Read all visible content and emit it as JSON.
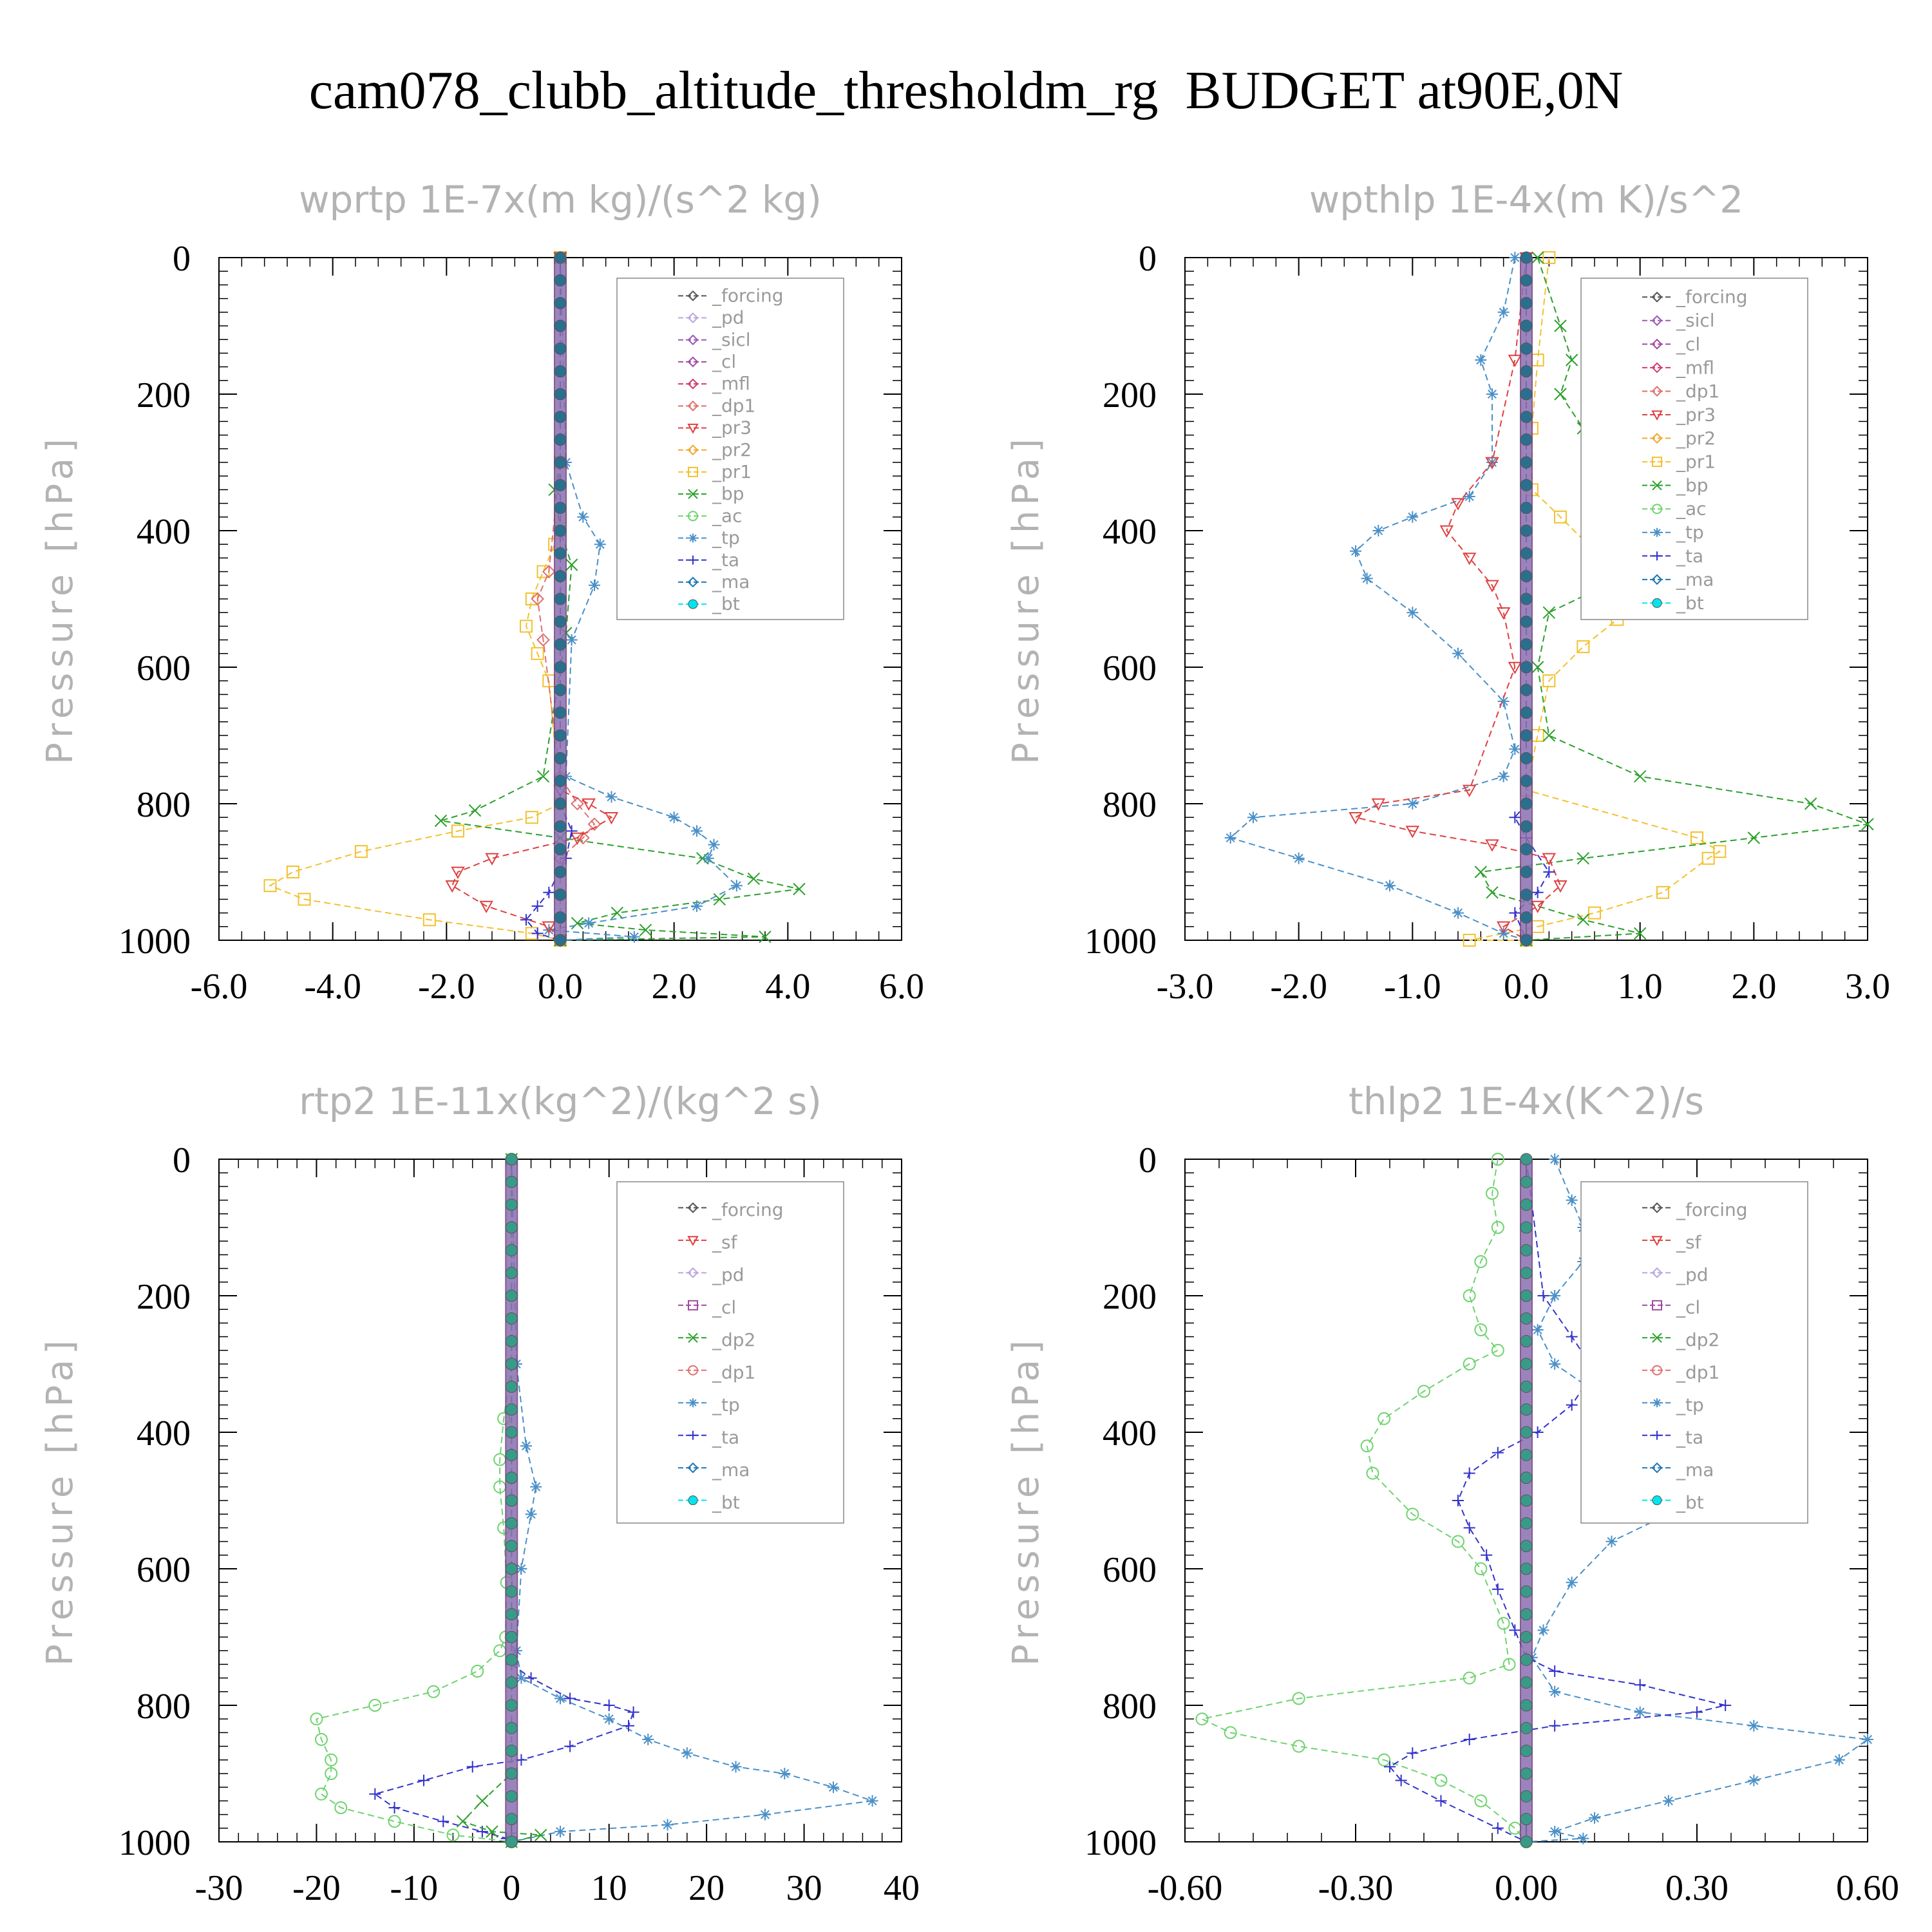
{
  "title": "cam078_clubb_altitude_thresholdm_rg  BUDGET at90E,0N",
  "chart_data": [
    {
      "type": "line",
      "title": "wprtp  1E-7x(m kg)/(s^2 kg)",
      "ylabel": "Pressure [hPa]",
      "xlim": [
        -6,
        6
      ],
      "ylim": [
        0,
        1000
      ],
      "xticks": [
        "-6.0",
        "-4.0",
        "-2.0",
        "0.0",
        "2.0",
        "4.0",
        "6.0"
      ],
      "xtick_values": [
        -6,
        -4,
        -2,
        0,
        2,
        4,
        6
      ],
      "yticks": [
        "0",
        "200",
        "400",
        "600",
        "800",
        "1000"
      ],
      "ytick_values": [
        0,
        200,
        400,
        600,
        800,
        1000
      ],
      "legend": [
        "_forcing",
        "_pd",
        "_sicl",
        "_cl",
        "_mfl",
        "_dp1",
        "_pr3",
        "_pr2",
        "_pr1",
        "_bp",
        "_ac",
        "_tp",
        "_ta",
        "_ma",
        "_bt"
      ],
      "series": [
        {
          "name": "_pr1",
          "color": "#f2c12e",
          "marker": "square",
          "x": [
            0,
            0,
            0,
            -0.1,
            -0.3,
            -0.5,
            -0.6,
            -0.4,
            -0.2,
            0,
            -0.5,
            -1.8,
            -3.5,
            -4.7,
            -5.1,
            -4.5,
            -2.3,
            -0.5,
            0
          ],
          "y": [
            0,
            300,
            380,
            420,
            460,
            500,
            540,
            580,
            620,
            800,
            820,
            840,
            870,
            900,
            920,
            940,
            970,
            990,
            1000
          ]
        },
        {
          "name": "_bp",
          "color": "#2ca02c",
          "marker": "cross",
          "x": [
            0,
            0,
            -0.1,
            0,
            0.2,
            0.1,
            -0.3,
            -1.5,
            -2.1,
            0,
            2.5,
            3.4,
            4.2,
            2.8,
            1.0,
            0.3,
            1.5,
            3.6,
            0
          ],
          "y": [
            0,
            300,
            340,
            400,
            450,
            550,
            760,
            810,
            825,
            850,
            880,
            910,
            925,
            940,
            960,
            975,
            985,
            995,
            1000
          ]
        },
        {
          "name": "_tp",
          "color": "#4a90c8",
          "marker": "star",
          "x": [
            0,
            0.1,
            0.4,
            0.7,
            0.6,
            0.2,
            0.1,
            0.9,
            2.0,
            2.4,
            2.7,
            2.6,
            3.1,
            2.4,
            0.5,
            -0.2,
            1.3,
            0
          ],
          "y": [
            0,
            300,
            380,
            420,
            480,
            560,
            760,
            790,
            820,
            840,
            860,
            880,
            920,
            950,
            975,
            985,
            995,
            1000
          ]
        },
        {
          "name": "_dp1",
          "color": "#e07070",
          "marker": "diamond",
          "x": [
            0,
            0,
            -0.2,
            -0.4,
            -0.3,
            0,
            0.3,
            0.6,
            0.4,
            0,
            0
          ],
          "y": [
            0,
            300,
            460,
            500,
            560,
            760,
            800,
            830,
            850,
            880,
            1000
          ]
        },
        {
          "name": "_pr3",
          "color": "#e04040",
          "marker": "triangle-down",
          "x": [
            0,
            0,
            0.5,
            0.9,
            0.3,
            -1.2,
            -1.8,
            -1.9,
            -1.3,
            -0.2,
            0
          ],
          "y": [
            0,
            780,
            800,
            820,
            850,
            880,
            900,
            920,
            950,
            980,
            1000
          ]
        },
        {
          "name": "_ta",
          "color": "#3333cc",
          "marker": "plus",
          "x": [
            0,
            0,
            0.2,
            0.1,
            -0.2,
            -0.4,
            -0.6,
            -0.4,
            0
          ],
          "y": [
            0,
            800,
            840,
            880,
            930,
            950,
            970,
            990,
            1000
          ]
        },
        {
          "name": "_bt",
          "color": "#2b6f8f",
          "marker": "circle",
          "x": [
            0,
            0
          ],
          "y": [
            0,
            1000
          ]
        }
      ]
    },
    {
      "type": "line",
      "title": "wpthlp  1E-4x(m K)/s^2",
      "ylabel": "Pressure [hPa]",
      "xlim": [
        -3,
        3
      ],
      "ylim": [
        0,
        1000
      ],
      "xticks": [
        "-3.0",
        "-2.0",
        "-1.0",
        "0.0",
        "1.0",
        "2.0",
        "3.0"
      ],
      "xtick_values": [
        -3,
        -2,
        -1,
        0,
        1,
        2,
        3
      ],
      "yticks": [
        "0",
        "200",
        "400",
        "600",
        "800",
        "1000"
      ],
      "ytick_values": [
        0,
        200,
        400,
        600,
        800,
        1000
      ],
      "legend": [
        "_forcing",
        "_sicl",
        "_cl",
        "_mfl",
        "_dp1",
        "_pr3",
        "_pr2",
        "_pr1",
        "_bp",
        "_ac",
        "_tp",
        "_ta",
        "_ma",
        "_bt"
      ],
      "series": [
        {
          "name": "_pr1",
          "color": "#f2c12e",
          "marker": "square",
          "x": [
            0.2,
            0.1,
            0.05,
            0.05,
            0.3,
            0.6,
            0.9,
            1.0,
            0.8,
            0.5,
            0.2,
            0.1,
            0,
            1.5,
            1.7,
            1.6,
            1.2,
            0.6,
            0.1,
            -0.5,
            0
          ],
          "y": [
            0,
            150,
            250,
            340,
            380,
            430,
            470,
            500,
            530,
            570,
            620,
            700,
            780,
            850,
            870,
            880,
            930,
            960,
            980,
            1000,
            1000
          ]
        },
        {
          "name": "_bp",
          "color": "#2ca02c",
          "marker": "cross",
          "x": [
            0.1,
            0.3,
            0.4,
            0.3,
            0.5,
            0.9,
            1.3,
            1.2,
            0.7,
            0.2,
            0.1,
            0.2,
            1.0,
            2.5,
            3.0,
            2.0,
            0.5,
            -0.4,
            -0.3,
            0.5,
            1.0,
            0
          ],
          "y": [
            0,
            100,
            150,
            200,
            250,
            320,
            400,
            450,
            480,
            520,
            600,
            700,
            760,
            800,
            830,
            850,
            880,
            900,
            930,
            970,
            990,
            1000
          ]
        },
        {
          "name": "_tp",
          "color": "#4a90c8",
          "marker": "star",
          "x": [
            -0.1,
            -0.2,
            -0.4,
            -0.3,
            -0.3,
            -0.5,
            -1.0,
            -1.3,
            -1.5,
            -1.4,
            -1.0,
            -0.6,
            -0.2,
            -0.1,
            -0.2,
            -1.0,
            -2.4,
            -2.6,
            -2.0,
            -1.2,
            -0.6,
            -0.2,
            0
          ],
          "y": [
            0,
            80,
            150,
            200,
            300,
            350,
            380,
            400,
            430,
            470,
            520,
            580,
            650,
            720,
            760,
            800,
            820,
            850,
            880,
            920,
            960,
            990,
            1000
          ]
        },
        {
          "name": "_pr3",
          "color": "#e04040",
          "marker": "triangle-down",
          "x": [
            0,
            -0.1,
            -0.3,
            -0.6,
            -0.7,
            -0.5,
            -0.3,
            -0.2,
            -0.1,
            -0.5,
            -1.3,
            -1.5,
            -1.0,
            -0.3,
            0.2,
            0.3,
            0.1,
            -0.2,
            0
          ],
          "y": [
            0,
            150,
            300,
            360,
            400,
            440,
            480,
            520,
            600,
            780,
            800,
            820,
            840,
            860,
            880,
            920,
            950,
            980,
            1000
          ]
        },
        {
          "name": "_ta",
          "color": "#3333cc",
          "marker": "plus",
          "x": [
            0,
            0,
            -0.1,
            0,
            0.2,
            0.1,
            -0.1,
            0
          ],
          "y": [
            0,
            800,
            820,
            850,
            900,
            930,
            960,
            1000
          ]
        },
        {
          "name": "_bt",
          "color": "#2b6f8f",
          "marker": "circle",
          "x": [
            0,
            0
          ],
          "y": [
            0,
            1000
          ]
        }
      ]
    },
    {
      "type": "line",
      "title": "rtp2  1E-11x(kg^2)/(kg^2 s)",
      "ylabel": "Pressure [hPa]",
      "xlim": [
        -30,
        40
      ],
      "ylim": [
        0,
        1000
      ],
      "xticks": [
        "-30",
        "-20",
        "-10",
        "0",
        "10",
        "20",
        "30",
        "40"
      ],
      "xtick_values": [
        -30,
        -20,
        -10,
        0,
        10,
        20,
        30,
        40
      ],
      "yticks": [
        "0",
        "200",
        "400",
        "600",
        "800",
        "1000"
      ],
      "ytick_values": [
        0,
        200,
        400,
        600,
        800,
        1000
      ],
      "legend": [
        "_forcing",
        "_sf",
        "_pd",
        "_cl",
        "_dp2",
        "_dp1",
        "_tp",
        "_ta",
        "_ma",
        "_bt"
      ],
      "series": [
        {
          "name": "_dp1",
          "color": "#6fd36f",
          "marker": "circle-open",
          "x": [
            0,
            0,
            -0.8,
            -1.2,
            -1.2,
            -0.8,
            -0.5,
            -0.6,
            -1.2,
            -3.5,
            -8,
            -14,
            -20,
            -19.5,
            -18.5,
            -18.5,
            -19.5,
            -17.5,
            -12,
            -6,
            0
          ],
          "y": [
            0,
            300,
            380,
            440,
            480,
            540,
            620,
            700,
            720,
            750,
            780,
            800,
            820,
            850,
            880,
            900,
            930,
            950,
            970,
            990,
            1000
          ]
        },
        {
          "name": "_tp",
          "color": "#4a90c8",
          "marker": "star",
          "x": [
            0,
            0.5,
            1.5,
            2.5,
            2.0,
            1.0,
            0.5,
            1.0,
            5,
            10,
            14,
            18,
            23,
            28,
            33,
            37,
            26,
            16,
            5,
            0
          ],
          "y": [
            0,
            300,
            420,
            480,
            520,
            600,
            720,
            760,
            790,
            820,
            850,
            870,
            890,
            900,
            920,
            940,
            960,
            975,
            985,
            1000
          ]
        },
        {
          "name": "_ta",
          "color": "#3333cc",
          "marker": "plus",
          "x": [
            0,
            0,
            2,
            6,
            10,
            12.5,
            12,
            6,
            1,
            -4,
            -9,
            -14,
            -12,
            -7,
            -3,
            -0.5,
            0
          ],
          "y": [
            0,
            740,
            760,
            790,
            800,
            810,
            830,
            860,
            880,
            890,
            910,
            930,
            950,
            970,
            985,
            995,
            1000
          ]
        },
        {
          "name": "_dp2",
          "color": "#2ca02c",
          "marker": "cross",
          "x": [
            0,
            0,
            -3,
            -5,
            -2,
            3,
            0
          ],
          "y": [
            0,
            900,
            940,
            970,
            985,
            990,
            1000
          ]
        },
        {
          "name": "_bt",
          "color": "#3a9a8a",
          "marker": "circle",
          "x": [
            0,
            0
          ],
          "y": [
            0,
            1000
          ]
        }
      ]
    },
    {
      "type": "line",
      "title": "thlp2  1E-4x(K^2)/s",
      "ylabel": "Pressure [hPa]",
      "xlim": [
        -0.6,
        0.6
      ],
      "ylim": [
        0,
        1000
      ],
      "xticks": [
        "-0.60",
        "-0.30",
        "0.00",
        "0.30",
        "0.60"
      ],
      "xtick_values": [
        -0.6,
        -0.3,
        0,
        0.3,
        0.6
      ],
      "yticks": [
        "0",
        "200",
        "400",
        "600",
        "800",
        "1000"
      ],
      "ytick_values": [
        0,
        200,
        400,
        600,
        800,
        1000
      ],
      "legend": [
        "_forcing",
        "_sf",
        "_pd",
        "_cl",
        "_dp2",
        "_dp1",
        "_tp",
        "_ta",
        "_ma",
        "_bt"
      ],
      "series": [
        {
          "name": "_dp1",
          "color": "#6fd36f",
          "marker": "circle-open",
          "x": [
            -0.05,
            -0.06,
            -0.05,
            -0.08,
            -0.1,
            -0.08,
            -0.05,
            -0.1,
            -0.18,
            -0.25,
            -0.28,
            -0.27,
            -0.2,
            -0.12,
            -0.08,
            -0.04,
            -0.03,
            -0.1,
            -0.4,
            -0.57,
            -0.52,
            -0.4,
            -0.25,
            -0.15,
            -0.08,
            -0.02,
            0
          ],
          "y": [
            0,
            50,
            100,
            150,
            200,
            250,
            280,
            300,
            340,
            380,
            420,
            460,
            520,
            560,
            600,
            680,
            740,
            760,
            790,
            820,
            840,
            860,
            880,
            910,
            940,
            980,
            1000
          ]
        },
        {
          "name": "_tp",
          "color": "#4a90c8",
          "marker": "star",
          "x": [
            0.05,
            0.08,
            0.1,
            0.1,
            0.05,
            0.02,
            0.05,
            0.12,
            0.22,
            0.3,
            0.34,
            0.25,
            0.15,
            0.08,
            0.03,
            0.01,
            0.05,
            0.2,
            0.4,
            0.6,
            0.55,
            0.4,
            0.25,
            0.12,
            0.05,
            0.1,
            0
          ],
          "y": [
            0,
            60,
            100,
            150,
            200,
            250,
            300,
            340,
            380,
            430,
            480,
            520,
            560,
            620,
            690,
            730,
            780,
            810,
            830,
            850,
            880,
            910,
            940,
            965,
            985,
            995,
            1000
          ]
        },
        {
          "name": "_ta",
          "color": "#3333cc",
          "marker": "plus",
          "x": [
            0,
            0.03,
            0.08,
            0.12,
            0.08,
            0.02,
            -0.05,
            -0.1,
            -0.12,
            -0.1,
            -0.07,
            -0.05,
            -0.02,
            0,
            0.05,
            0.2,
            0.35,
            0.3,
            0.05,
            -0.1,
            -0.2,
            -0.24,
            -0.22,
            -0.15,
            -0.05,
            0
          ],
          "y": [
            0,
            200,
            260,
            310,
            360,
            400,
            430,
            460,
            500,
            540,
            580,
            630,
            690,
            730,
            750,
            770,
            800,
            810,
            830,
            850,
            870,
            890,
            910,
            940,
            980,
            1000
          ]
        },
        {
          "name": "_bt",
          "color": "#3a9a8a",
          "marker": "circle",
          "x": [
            0,
            0
          ],
          "y": [
            0,
            1000
          ]
        }
      ]
    }
  ]
}
